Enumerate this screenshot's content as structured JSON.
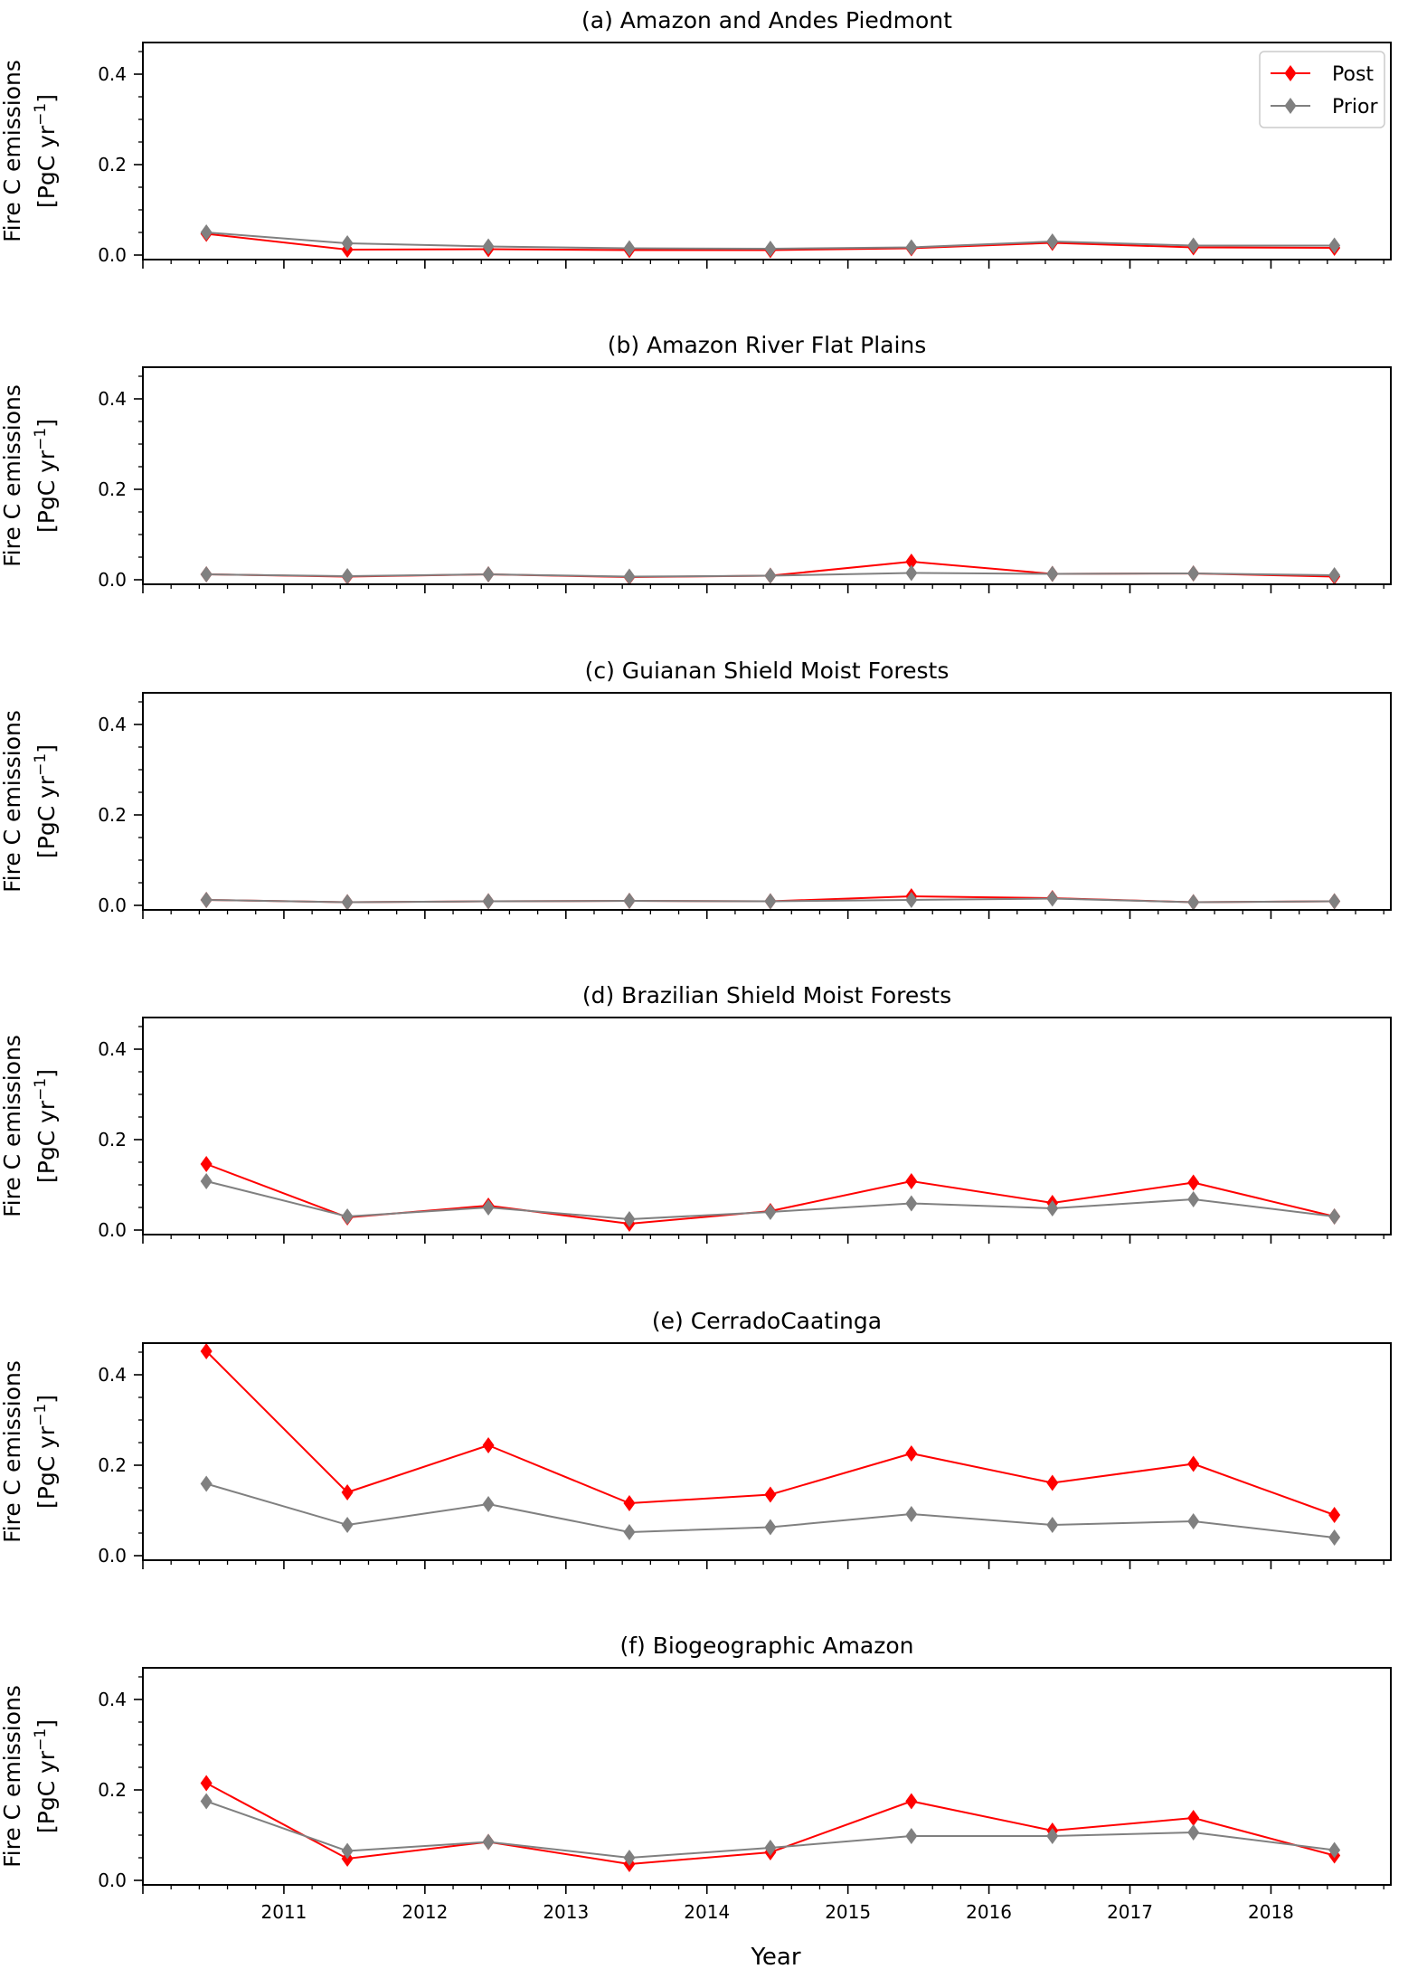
{
  "figure": {
    "xlabel": "Year",
    "ylabel_line1": "Fire C emissions",
    "ylabel_line2_prefix": "[PgC yr",
    "ylabel_line2_sup": "−1",
    "ylabel_line2_suffix": "]"
  },
  "legend": {
    "placement": "top-right of panel (a)",
    "items": [
      {
        "label": "Post",
        "color": "#ff0000",
        "marker": "diamond"
      },
      {
        "label": "Prior",
        "color": "#808080",
        "marker": "diamond"
      }
    ]
  },
  "chart_data": [
    {
      "type": "line",
      "title": "(a) Amazon and Andes Piedmont",
      "x": [
        2010.45,
        2011.45,
        2012.45,
        2013.45,
        2014.45,
        2015.45,
        2016.45,
        2017.45,
        2018.45
      ],
      "xlim": [
        2010.0,
        2018.85
      ],
      "ylim": [
        -0.01,
        0.47
      ],
      "yticks": [
        "0.0",
        "0.2",
        "0.4"
      ],
      "series": [
        {
          "name": "Post",
          "color": "#ff0000",
          "values": [
            0.047,
            0.012,
            0.013,
            0.011,
            0.011,
            0.015,
            0.027,
            0.017,
            0.016
          ]
        },
        {
          "name": "Prior",
          "color": "#808080",
          "values": [
            0.05,
            0.026,
            0.019,
            0.015,
            0.014,
            0.017,
            0.03,
            0.021,
            0.021
          ]
        }
      ]
    },
    {
      "type": "line",
      "title": "(b) Amazon River Flat Plains",
      "x": [
        2010.45,
        2011.45,
        2012.45,
        2013.45,
        2014.45,
        2015.45,
        2016.45,
        2017.45,
        2018.45
      ],
      "xlim": [
        2010.0,
        2018.85
      ],
      "ylim": [
        -0.01,
        0.47
      ],
      "yticks": [
        "0.0",
        "0.2",
        "0.4"
      ],
      "series": [
        {
          "name": "Post",
          "color": "#ff0000",
          "values": [
            0.012,
            0.007,
            0.012,
            0.006,
            0.009,
            0.04,
            0.013,
            0.014,
            0.007
          ]
        },
        {
          "name": "Prior",
          "color": "#808080",
          "values": [
            0.012,
            0.008,
            0.012,
            0.007,
            0.009,
            0.015,
            0.013,
            0.014,
            0.01
          ]
        }
      ]
    },
    {
      "type": "line",
      "title": "(c) Guianan Shield Moist Forests",
      "x": [
        2010.45,
        2011.45,
        2012.45,
        2013.45,
        2014.45,
        2015.45,
        2016.45,
        2017.45,
        2018.45
      ],
      "xlim": [
        2010.0,
        2018.85
      ],
      "ylim": [
        -0.01,
        0.47
      ],
      "yticks": [
        "0.0",
        "0.2",
        "0.4"
      ],
      "series": [
        {
          "name": "Post",
          "color": "#ff0000",
          "values": [
            0.012,
            0.007,
            0.009,
            0.01,
            0.009,
            0.02,
            0.016,
            0.007,
            0.009
          ]
        },
        {
          "name": "Prior",
          "color": "#808080",
          "values": [
            0.012,
            0.007,
            0.009,
            0.01,
            0.009,
            0.012,
            0.015,
            0.007,
            0.009
          ]
        }
      ]
    },
    {
      "type": "line",
      "title": "(d) Brazilian Shield Moist Forests",
      "x": [
        2010.45,
        2011.45,
        2012.45,
        2013.45,
        2014.45,
        2015.45,
        2016.45,
        2017.45,
        2018.45
      ],
      "xlim": [
        2010.0,
        2018.85
      ],
      "ylim": [
        -0.01,
        0.47
      ],
      "yticks": [
        "0.0",
        "0.2",
        "0.4"
      ],
      "series": [
        {
          "name": "Post",
          "color": "#ff0000",
          "values": [
            0.146,
            0.028,
            0.054,
            0.014,
            0.042,
            0.108,
            0.06,
            0.105,
            0.03
          ]
        },
        {
          "name": "Prior",
          "color": "#808080",
          "values": [
            0.108,
            0.03,
            0.05,
            0.024,
            0.04,
            0.059,
            0.048,
            0.068,
            0.03
          ]
        }
      ]
    },
    {
      "type": "line",
      "title": "(e) CerradoCaatinga",
      "x": [
        2010.45,
        2011.45,
        2012.45,
        2013.45,
        2014.45,
        2015.45,
        2016.45,
        2017.45,
        2018.45
      ],
      "xlim": [
        2010.0,
        2018.85
      ],
      "ylim": [
        -0.01,
        0.47
      ],
      "yticks": [
        "0.0",
        "0.2",
        "0.4"
      ],
      "series": [
        {
          "name": "Post",
          "color": "#ff0000",
          "values": [
            0.452,
            0.14,
            0.244,
            0.116,
            0.135,
            0.226,
            0.161,
            0.203,
            0.09
          ]
        },
        {
          "name": "Prior",
          "color": "#808080",
          "values": [
            0.159,
            0.068,
            0.114,
            0.052,
            0.063,
            0.092,
            0.068,
            0.076,
            0.04
          ]
        }
      ]
    },
    {
      "type": "line",
      "title": "(f) Biogeographic Amazon",
      "x": [
        2010.45,
        2011.45,
        2012.45,
        2013.45,
        2014.45,
        2015.45,
        2016.45,
        2017.45,
        2018.45
      ],
      "xlim": [
        2010.0,
        2018.85
      ],
      "ylim": [
        -0.01,
        0.47
      ],
      "yticks": [
        "0.0",
        "0.2",
        "0.4"
      ],
      "xticks": [
        "2011",
        "2012",
        "2013",
        "2014",
        "2015",
        "2016",
        "2017",
        "2018"
      ],
      "series": [
        {
          "name": "Post",
          "color": "#ff0000",
          "values": [
            0.215,
            0.048,
            0.085,
            0.036,
            0.062,
            0.175,
            0.11,
            0.138,
            0.055
          ]
        },
        {
          "name": "Prior",
          "color": "#808080",
          "values": [
            0.175,
            0.065,
            0.085,
            0.05,
            0.072,
            0.098,
            0.098,
            0.106,
            0.067
          ]
        }
      ]
    }
  ]
}
